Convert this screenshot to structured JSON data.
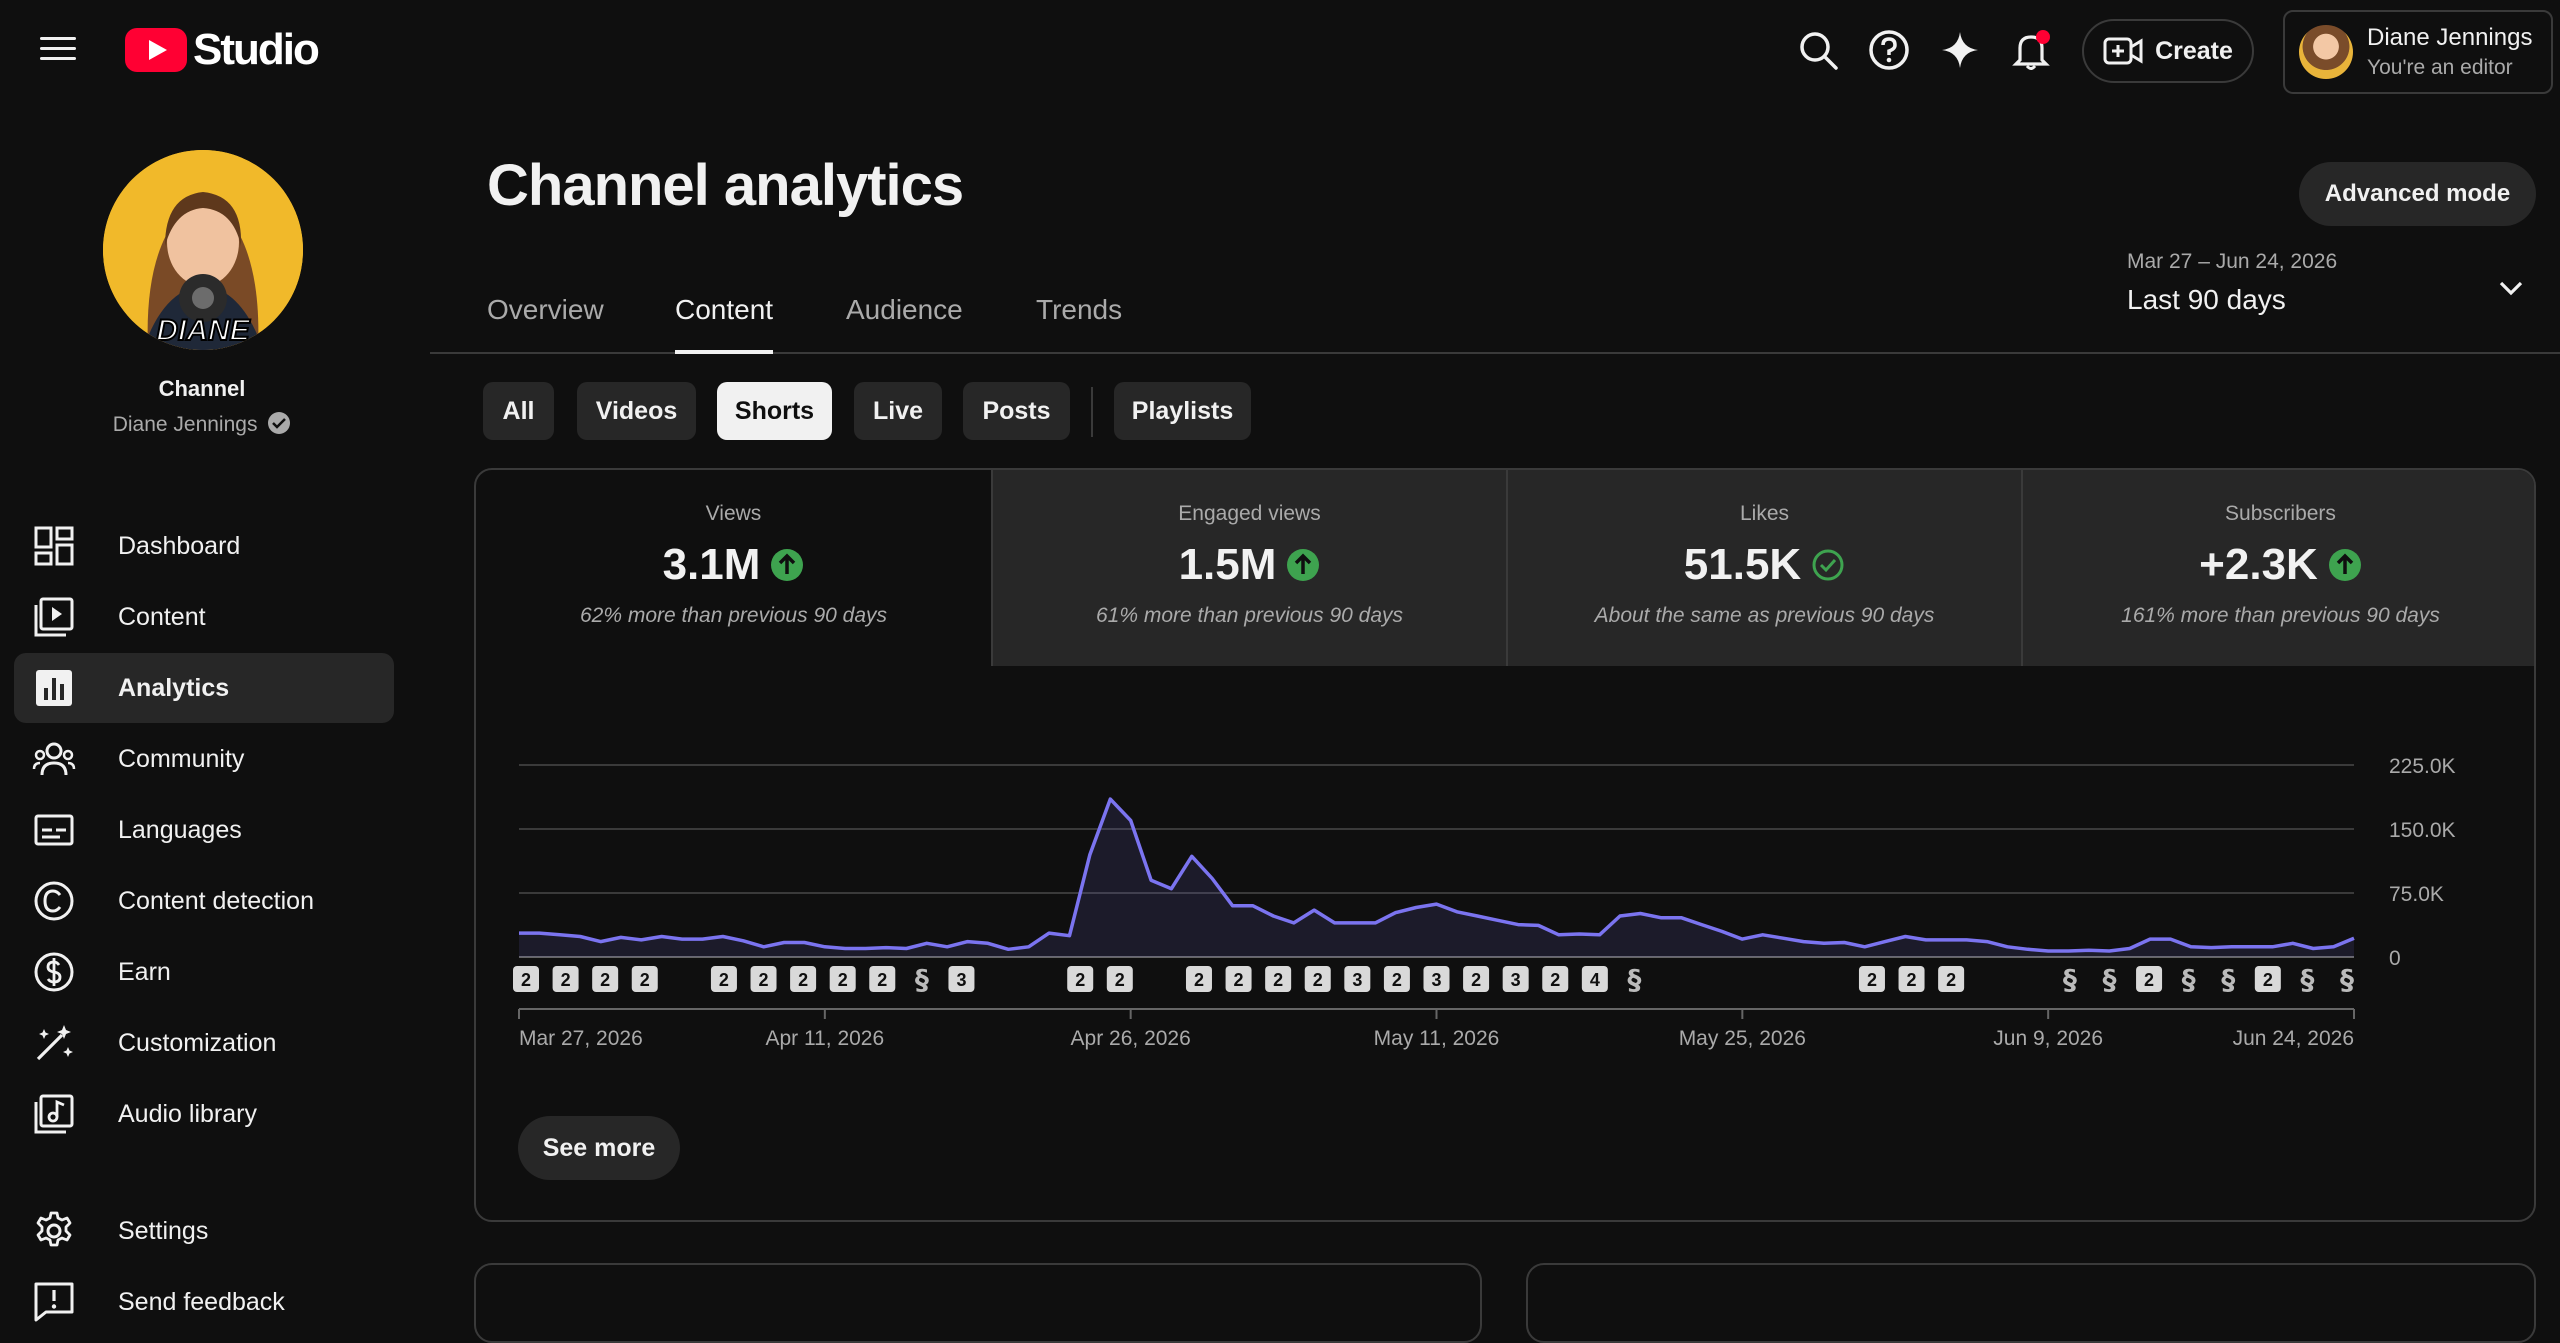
{
  "brand": {
    "logo_text": "Studio"
  },
  "account": {
    "name": "Diane Jennings",
    "role": "You're an editor"
  },
  "header": {
    "create_label": "Create"
  },
  "channel": {
    "label": "Channel",
    "name": "Diane Jennings",
    "avatar_text": "DIANE"
  },
  "sidebar": {
    "items": [
      {
        "label": "Dashboard",
        "icon": "dashboard-icon"
      },
      {
        "label": "Content",
        "icon": "content-icon"
      },
      {
        "label": "Analytics",
        "icon": "analytics-icon"
      },
      {
        "label": "Community",
        "icon": "community-icon"
      },
      {
        "label": "Languages",
        "icon": "languages-icon"
      },
      {
        "label": "Content detection",
        "icon": "content-detection-icon"
      },
      {
        "label": "Earn",
        "icon": "earn-icon"
      },
      {
        "label": "Customization",
        "icon": "customization-icon"
      },
      {
        "label": "Audio library",
        "icon": "audio-library-icon"
      }
    ],
    "footer": [
      {
        "label": "Settings",
        "icon": "settings-icon"
      },
      {
        "label": "Send feedback",
        "icon": "feedback-icon"
      }
    ]
  },
  "page": {
    "title": "Channel analytics",
    "advanced_label": "Advanced mode"
  },
  "tabs": [
    "Overview",
    "Content",
    "Audience",
    "Trends"
  ],
  "date": {
    "range": "Mar 27 – Jun 24, 2026",
    "label": "Last 90 days"
  },
  "chips": [
    "All",
    "Videos",
    "Shorts",
    "Live",
    "Posts",
    "Playlists"
  ],
  "metrics": [
    {
      "title": "Views",
      "value": "3.1M",
      "sub": "62% more than previous 90 days",
      "status": "up"
    },
    {
      "title": "Engaged views",
      "value": "1.5M",
      "sub": "61% more than previous 90 days",
      "status": "up"
    },
    {
      "title": "Likes",
      "value": "51.5K",
      "sub": "About the same as previous 90 days",
      "status": "same"
    },
    {
      "title": "Subscribers",
      "value": "+2.3K",
      "sub": "161% more than previous 90 days",
      "status": "up"
    }
  ],
  "colors": {
    "accent": "#8a86f5",
    "up_green": "#3ea34f",
    "line": "#7b74f0"
  },
  "see_more_label": "See more",
  "chart_data": {
    "type": "line",
    "series": [
      {
        "values": [
          28,
          28,
          26,
          24,
          18,
          23,
          20,
          24,
          21,
          21,
          24,
          19,
          12,
          17,
          17,
          12,
          10,
          10,
          11,
          10,
          16,
          12,
          18,
          16,
          9,
          12,
          28,
          25,
          120,
          185,
          160,
          90,
          80,
          118,
          92,
          60,
          60,
          48,
          40,
          55,
          40,
          40,
          40,
          52,
          58,
          62,
          53,
          48,
          43,
          38,
          37,
          26,
          27,
          26,
          48,
          51,
          46,
          46,
          38,
          30,
          21,
          26,
          22,
          18,
          16,
          17,
          12,
          18,
          24,
          20,
          20,
          20,
          18,
          12,
          9,
          7,
          7,
          8,
          7,
          10,
          21,
          21,
          12,
          11,
          12,
          12,
          12,
          16,
          10,
          12,
          22
        ]
      }
    ],
    "x_tick_labels": [
      "Mar 27, 2026",
      "Apr 11, 2026",
      "Apr 26, 2026",
      "May 11, 2026",
      "May 25, 2026",
      "Jun 9, 2026",
      "Jun 24, 2026"
    ],
    "y_tick_labels": [
      "225.0K",
      "150.0K",
      "75.0K",
      "0"
    ],
    "ylim": [
      0,
      225000
    ],
    "grid": true,
    "markers": [
      "2",
      "2",
      "2",
      "2",
      "",
      "2",
      "2",
      "2",
      "2",
      "2",
      "s",
      "3",
      "",
      "",
      "2",
      "2",
      "",
      "2",
      "2",
      "2",
      "2",
      "3",
      "2",
      "3",
      "2",
      "3",
      "2",
      "4",
      "s",
      "",
      "",
      "",
      "",
      "",
      "2",
      "2",
      "2",
      "",
      "",
      "s",
      "s",
      "2",
      "s",
      "s",
      "2",
      "s",
      "s"
    ]
  }
}
